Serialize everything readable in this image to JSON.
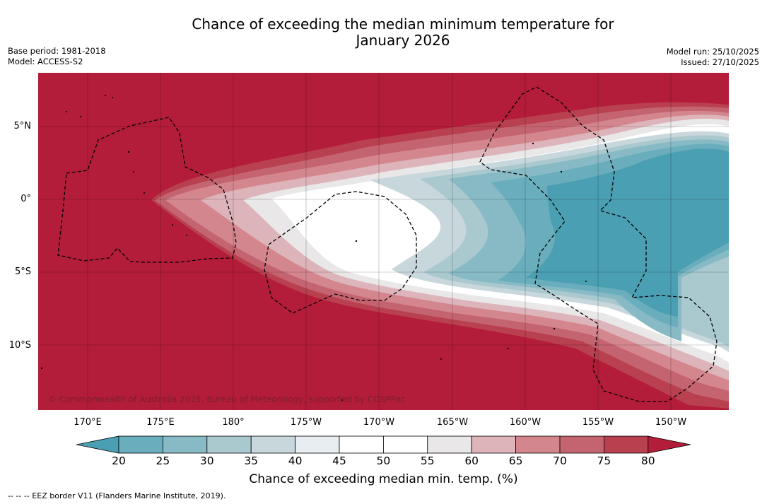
{
  "title": {
    "line1": "Chance of exceeding the median minimum temperature for",
    "line2": "January 2026"
  },
  "meta": {
    "base_period": "Base period: 1981-2018",
    "model": "Model: ACCESS-S2",
    "model_run": "Model run: 25/10/2025",
    "issued": "Issued: 27/10/2025"
  },
  "map": {
    "lat_labels": [
      "5°N",
      "0°",
      "5°S",
      "10°S"
    ],
    "lon_labels": [
      "170°E",
      "175°E",
      "180°",
      "175°W",
      "170°W",
      "165°W",
      "160°W",
      "155°W",
      "150°W"
    ],
    "copyright": "© Commonwealth of Australia 2025, Bureau of Meteorology, supported by COSPPac",
    "background_color": "#b31d39"
  },
  "colorbar": {
    "ticks": [
      "20",
      "25",
      "30",
      "35",
      "40",
      "45",
      "50",
      "55",
      "60",
      "65",
      "70",
      "75",
      "80"
    ],
    "colors": [
      "#4b9fb2",
      "#6aaebd",
      "#88bac6",
      "#a9c9cf",
      "#c7d7dc",
      "#e7edf0",
      "#ffffff",
      "#ffffff",
      "#e9e7e7",
      "#ddb4ba",
      "#d4868f",
      "#c56471",
      "#b9404f",
      "#b31d39"
    ],
    "label": "Chance of exceeding median min. temp. (%)"
  },
  "legend_note": "--  --  -- EEZ border V11 (Flanders Marine Institute, 2019)."
}
